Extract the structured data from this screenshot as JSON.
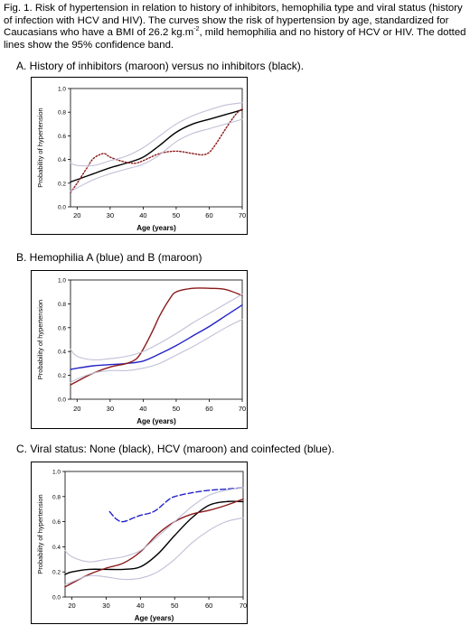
{
  "caption": {
    "part1": "Fig. 1. Risk of hypertension in relation to history of inhibitors, hemophilia type and viral status (history of infection with HCV and HIV). The curves show the risk of hypertension by age, standardized for Caucasians who have a BMI of 26.2 kg.m",
    "sup": "-2",
    "part2": ", mild hemophilia and no history of HCV or HIV. The dotted lines show the 95% confidence band."
  },
  "colors": {
    "black": "#000000",
    "maroon": "#8b1a1a",
    "blue": "#2323c8",
    "ci": "#c0c0d8"
  },
  "chart_data": [
    {
      "type": "line",
      "panel_title": "A.  History of inhibitors (maroon) versus no inhibitors (black).",
      "xlabel": "Age (years)",
      "ylabel": "Probability of hypertension",
      "xlim": [
        18,
        70
      ],
      "ylim": [
        0,
        1
      ],
      "xticks": [
        "20",
        "30",
        "40",
        "50",
        "60",
        "70"
      ],
      "yticks": [
        "0.0",
        "0.2",
        "0.4",
        "0.6",
        "0.8",
        "1.0"
      ],
      "series": [
        {
          "color": "black",
          "dash": "solid",
          "x": [
            18,
            20,
            25,
            30,
            35,
            40,
            45,
            50,
            55,
            60,
            65,
            70
          ],
          "y": [
            0.21,
            0.23,
            0.28,
            0.33,
            0.37,
            0.42,
            0.52,
            0.63,
            0.7,
            0.74,
            0.78,
            0.82
          ]
        },
        {
          "color": "maroon",
          "dash": "dotted",
          "x": [
            18,
            20,
            23,
            25,
            28,
            30,
            33,
            36,
            38,
            40,
            45,
            50,
            55,
            58,
            60,
            62,
            65,
            68,
            70
          ],
          "y": [
            0.12,
            0.2,
            0.33,
            0.41,
            0.45,
            0.42,
            0.39,
            0.37,
            0.37,
            0.39,
            0.45,
            0.47,
            0.45,
            0.44,
            0.46,
            0.53,
            0.66,
            0.78,
            0.83
          ]
        },
        {
          "color": "ci",
          "dash": "solid",
          "x": [
            18,
            20,
            25,
            30,
            35,
            40,
            45,
            50,
            55,
            60,
            65,
            70
          ],
          "y": [
            0.37,
            0.35,
            0.35,
            0.39,
            0.43,
            0.5,
            0.6,
            0.7,
            0.77,
            0.82,
            0.86,
            0.88
          ]
        },
        {
          "color": "ci",
          "dash": "solid",
          "x": [
            18,
            20,
            25,
            30,
            35,
            40,
            45,
            50,
            55,
            60,
            65,
            70
          ],
          "y": [
            0.13,
            0.16,
            0.23,
            0.28,
            0.32,
            0.36,
            0.44,
            0.55,
            0.62,
            0.66,
            0.7,
            0.74
          ]
        }
      ]
    },
    {
      "type": "line",
      "panel_title": "B.  Hemophilia A (blue) and B (maroon)",
      "xlabel": "Age (years)",
      "ylabel": "Probability of hypertension",
      "xlim": [
        18,
        70
      ],
      "ylim": [
        0,
        1
      ],
      "xticks": [
        "20",
        "30",
        "40",
        "50",
        "60",
        "70"
      ],
      "yticks": [
        "0.0",
        "0.2",
        "0.4",
        "0.6",
        "0.8",
        "1.0"
      ],
      "series": [
        {
          "color": "blue",
          "dash": "solid",
          "x": [
            18,
            20,
            25,
            30,
            35,
            40,
            45,
            50,
            55,
            60,
            65,
            70
          ],
          "y": [
            0.25,
            0.26,
            0.28,
            0.29,
            0.3,
            0.32,
            0.38,
            0.45,
            0.53,
            0.61,
            0.7,
            0.79
          ]
        },
        {
          "color": "maroon",
          "dash": "solid",
          "x": [
            18,
            20,
            25,
            30,
            35,
            38,
            40,
            43,
            45,
            48,
            50,
            55,
            60,
            65,
            70
          ],
          "y": [
            0.12,
            0.15,
            0.22,
            0.27,
            0.3,
            0.34,
            0.42,
            0.58,
            0.7,
            0.84,
            0.9,
            0.93,
            0.93,
            0.92,
            0.87
          ]
        },
        {
          "color": "ci",
          "dash": "solid",
          "x": [
            18,
            20,
            25,
            30,
            35,
            40,
            45,
            50,
            55,
            60,
            65,
            70
          ],
          "y": [
            0.42,
            0.36,
            0.33,
            0.34,
            0.36,
            0.4,
            0.47,
            0.55,
            0.64,
            0.72,
            0.8,
            0.88
          ]
        },
        {
          "color": "ci",
          "dash": "solid",
          "x": [
            18,
            20,
            25,
            30,
            35,
            40,
            45,
            50,
            55,
            60,
            65,
            70
          ],
          "y": [
            0.14,
            0.17,
            0.22,
            0.24,
            0.24,
            0.26,
            0.3,
            0.37,
            0.44,
            0.52,
            0.6,
            0.67
          ]
        }
      ]
    },
    {
      "type": "line",
      "panel_title": "C.  Viral status: None (black), HCV (maroon) and coinfected (blue).",
      "xlabel": "Age (years)",
      "ylabel": "Probability of hypertension",
      "xlim": [
        18,
        70
      ],
      "ylim": [
        0,
        1
      ],
      "xticks": [
        "20",
        "30",
        "40",
        "50",
        "60",
        "70"
      ],
      "yticks": [
        "0.0",
        "0.2",
        "0.4",
        "0.6",
        "0.8",
        "1.0"
      ],
      "series": [
        {
          "color": "black",
          "dash": "solid",
          "x": [
            18,
            20,
            25,
            30,
            35,
            40,
            45,
            50,
            55,
            60,
            65,
            70
          ],
          "y": [
            0.18,
            0.2,
            0.22,
            0.22,
            0.22,
            0.24,
            0.34,
            0.49,
            0.63,
            0.73,
            0.76,
            0.76
          ]
        },
        {
          "color": "maroon",
          "dash": "solid",
          "x": [
            18,
            20,
            25,
            30,
            35,
            40,
            45,
            50,
            55,
            60,
            65,
            70
          ],
          "y": [
            0.08,
            0.11,
            0.18,
            0.23,
            0.27,
            0.36,
            0.5,
            0.6,
            0.66,
            0.69,
            0.73,
            0.78
          ]
        },
        {
          "color": "blue",
          "dash": "dashed",
          "x": [
            31,
            33,
            35,
            38,
            40,
            43,
            45,
            48,
            50,
            55,
            60,
            65,
            70
          ],
          "y": [
            0.68,
            0.62,
            0.6,
            0.63,
            0.65,
            0.67,
            0.7,
            0.77,
            0.8,
            0.83,
            0.85,
            0.86,
            0.87
          ]
        },
        {
          "color": "ci",
          "dash": "solid",
          "x": [
            18,
            20,
            25,
            30,
            35,
            40,
            45,
            50,
            55,
            60,
            65,
            70
          ],
          "y": [
            0.37,
            0.32,
            0.28,
            0.3,
            0.32,
            0.37,
            0.48,
            0.6,
            0.72,
            0.81,
            0.85,
            0.87
          ]
        },
        {
          "color": "ci",
          "dash": "solid",
          "x": [
            18,
            20,
            25,
            30,
            35,
            40,
            45,
            50,
            55,
            60,
            65,
            70
          ],
          "y": [
            0.1,
            0.12,
            0.17,
            0.16,
            0.14,
            0.15,
            0.2,
            0.3,
            0.43,
            0.53,
            0.6,
            0.63
          ]
        }
      ]
    }
  ]
}
